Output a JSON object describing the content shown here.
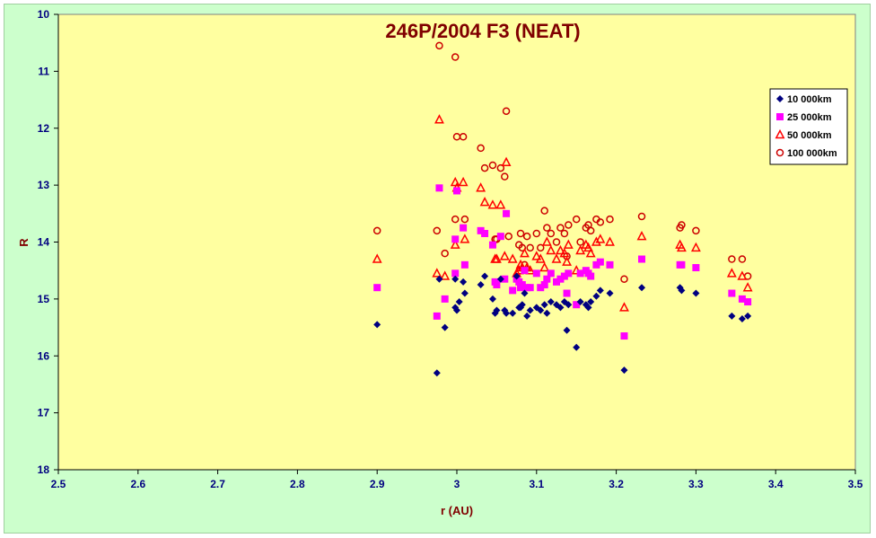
{
  "chart_data": {
    "type": "scatter",
    "title": "246P/2004  F3 (NEAT)",
    "xlabel": "r (AU)",
    "ylabel": "R",
    "xlim": [
      2.5,
      3.5
    ],
    "ylim": [
      10,
      18
    ],
    "y_inverted": true,
    "xticks": [
      "2.5",
      "2.6",
      "2.7",
      "2.8",
      "2.9",
      "3",
      "3.1",
      "3.2",
      "3.3",
      "3.4",
      "3.5"
    ],
    "yticks": [
      "10",
      "11",
      "12",
      "13",
      "14",
      "15",
      "16",
      "17",
      "18"
    ],
    "grid": false,
    "legend_position": "right",
    "colors": {
      "plot_bg": "#ffffa0",
      "outer_bg": "#ccffcc",
      "title": "#800000",
      "ticks": "#000080"
    },
    "series": [
      {
        "name": "10 000km",
        "marker": "diamond",
        "color": "#000080",
        "points": [
          [
            2.9,
            15.45
          ],
          [
            2.975,
            16.3
          ],
          [
            2.978,
            14.65
          ],
          [
            2.985,
            15.5
          ],
          [
            2.998,
            15.15
          ],
          [
            2.998,
            14.65
          ],
          [
            3.0,
            15.2
          ],
          [
            3.003,
            15.05
          ],
          [
            3.008,
            14.7
          ],
          [
            3.01,
            14.9
          ],
          [
            3.03,
            14.75
          ],
          [
            3.035,
            14.6
          ],
          [
            3.045,
            15.0
          ],
          [
            3.048,
            15.25
          ],
          [
            3.05,
            15.2
          ],
          [
            3.055,
            14.65
          ],
          [
            3.06,
            15.2
          ],
          [
            3.062,
            15.25
          ],
          [
            3.07,
            15.25
          ],
          [
            3.075,
            14.6
          ],
          [
            3.078,
            15.15
          ],
          [
            3.08,
            15.15
          ],
          [
            3.082,
            15.1
          ],
          [
            3.085,
            14.9
          ],
          [
            3.088,
            15.3
          ],
          [
            3.092,
            15.2
          ],
          [
            3.1,
            15.15
          ],
          [
            3.105,
            15.2
          ],
          [
            3.11,
            15.1
          ],
          [
            3.113,
            15.25
          ],
          [
            3.118,
            15.05
          ],
          [
            3.125,
            15.1
          ],
          [
            3.13,
            15.15
          ],
          [
            3.135,
            15.05
          ],
          [
            3.138,
            15.55
          ],
          [
            3.14,
            15.1
          ],
          [
            3.15,
            15.85
          ],
          [
            3.155,
            15.05
          ],
          [
            3.162,
            15.1
          ],
          [
            3.165,
            15.15
          ],
          [
            3.168,
            15.05
          ],
          [
            3.175,
            14.95
          ],
          [
            3.18,
            14.85
          ],
          [
            3.192,
            14.9
          ],
          [
            3.21,
            16.25
          ],
          [
            3.232,
            14.8
          ],
          [
            3.28,
            14.8
          ],
          [
            3.282,
            14.85
          ],
          [
            3.3,
            14.9
          ],
          [
            3.345,
            15.3
          ],
          [
            3.358,
            15.35
          ],
          [
            3.365,
            15.3
          ]
        ]
      },
      {
        "name": "25 000km",
        "marker": "square",
        "color": "#ff00ff",
        "points": [
          [
            2.9,
            14.8
          ],
          [
            2.975,
            15.3
          ],
          [
            2.978,
            13.05
          ],
          [
            2.985,
            15.0
          ],
          [
            2.998,
            14.55
          ],
          [
            2.998,
            13.95
          ],
          [
            3.0,
            13.1
          ],
          [
            3.008,
            13.75
          ],
          [
            3.01,
            14.4
          ],
          [
            3.03,
            13.8
          ],
          [
            3.035,
            13.85
          ],
          [
            3.045,
            14.05
          ],
          [
            3.048,
            14.7
          ],
          [
            3.05,
            14.75
          ],
          [
            3.055,
            13.9
          ],
          [
            3.06,
            14.65
          ],
          [
            3.062,
            13.5
          ],
          [
            3.07,
            14.85
          ],
          [
            3.075,
            14.65
          ],
          [
            3.078,
            14.7
          ],
          [
            3.08,
            14.8
          ],
          [
            3.082,
            14.75
          ],
          [
            3.085,
            14.5
          ],
          [
            3.088,
            14.8
          ],
          [
            3.092,
            14.8
          ],
          [
            3.1,
            14.55
          ],
          [
            3.105,
            14.8
          ],
          [
            3.11,
            14.75
          ],
          [
            3.113,
            14.65
          ],
          [
            3.118,
            14.55
          ],
          [
            3.125,
            14.7
          ],
          [
            3.13,
            14.65
          ],
          [
            3.135,
            14.6
          ],
          [
            3.138,
            14.9
          ],
          [
            3.14,
            14.55
          ],
          [
            3.15,
            15.1
          ],
          [
            3.155,
            14.55
          ],
          [
            3.162,
            14.5
          ],
          [
            3.165,
            14.55
          ],
          [
            3.168,
            14.6
          ],
          [
            3.175,
            14.4
          ],
          [
            3.18,
            14.35
          ],
          [
            3.192,
            14.4
          ],
          [
            3.21,
            15.65
          ],
          [
            3.232,
            14.3
          ],
          [
            3.28,
            14.4
          ],
          [
            3.282,
            14.4
          ],
          [
            3.3,
            14.45
          ],
          [
            3.345,
            14.9
          ],
          [
            3.358,
            15.0
          ],
          [
            3.365,
            15.05
          ]
        ]
      },
      {
        "name": "50 000km",
        "marker": "triangle",
        "color": "#ff0000",
        "points": [
          [
            2.9,
            14.3
          ],
          [
            2.975,
            14.55
          ],
          [
            2.978,
            11.85
          ],
          [
            2.985,
            14.6
          ],
          [
            2.998,
            14.05
          ],
          [
            2.998,
            12.95
          ],
          [
            3.0,
            13.05
          ],
          [
            3.008,
            12.95
          ],
          [
            3.01,
            13.95
          ],
          [
            3.03,
            13.05
          ],
          [
            3.035,
            13.3
          ],
          [
            3.045,
            13.35
          ],
          [
            3.048,
            14.3
          ],
          [
            3.05,
            14.3
          ],
          [
            3.055,
            13.35
          ],
          [
            3.06,
            14.25
          ],
          [
            3.062,
            12.6
          ],
          [
            3.07,
            14.3
          ],
          [
            3.075,
            14.55
          ],
          [
            3.078,
            14.5
          ],
          [
            3.08,
            14.4
          ],
          [
            3.082,
            14.45
          ],
          [
            3.085,
            14.2
          ],
          [
            3.088,
            14.45
          ],
          [
            3.092,
            14.5
          ],
          [
            3.1,
            14.25
          ],
          [
            3.105,
            14.3
          ],
          [
            3.11,
            14.45
          ],
          [
            3.113,
            14.0
          ],
          [
            3.118,
            14.15
          ],
          [
            3.125,
            14.3
          ],
          [
            3.13,
            14.15
          ],
          [
            3.135,
            14.2
          ],
          [
            3.138,
            14.35
          ],
          [
            3.14,
            14.05
          ],
          [
            3.15,
            14.5
          ],
          [
            3.155,
            14.15
          ],
          [
            3.162,
            14.05
          ],
          [
            3.165,
            14.1
          ],
          [
            3.168,
            14.2
          ],
          [
            3.175,
            14.0
          ],
          [
            3.18,
            13.95
          ],
          [
            3.192,
            14.0
          ],
          [
            3.21,
            15.15
          ],
          [
            3.232,
            13.9
          ],
          [
            3.28,
            14.05
          ],
          [
            3.282,
            14.1
          ],
          [
            3.3,
            14.1
          ],
          [
            3.345,
            14.55
          ],
          [
            3.358,
            14.6
          ],
          [
            3.365,
            14.8
          ]
        ]
      },
      {
        "name": "100 000km",
        "marker": "circle",
        "color": "#cc0000",
        "points": [
          [
            2.9,
            13.8
          ],
          [
            2.975,
            13.8
          ],
          [
            2.978,
            10.55
          ],
          [
            2.985,
            14.2
          ],
          [
            2.998,
            13.6
          ],
          [
            2.998,
            10.75
          ],
          [
            3.0,
            12.15
          ],
          [
            3.008,
            12.15
          ],
          [
            3.01,
            13.6
          ],
          [
            3.03,
            12.35
          ],
          [
            3.035,
            12.7
          ],
          [
            3.045,
            12.65
          ],
          [
            3.048,
            13.95
          ],
          [
            3.05,
            13.95
          ],
          [
            3.055,
            12.7
          ],
          [
            3.06,
            12.85
          ],
          [
            3.062,
            11.7
          ],
          [
            3.065,
            13.9
          ],
          [
            3.078,
            14.05
          ],
          [
            3.08,
            13.85
          ],
          [
            3.082,
            14.1
          ],
          [
            3.085,
            14.4
          ],
          [
            3.088,
            13.9
          ],
          [
            3.092,
            14.1
          ],
          [
            3.1,
            13.85
          ],
          [
            3.105,
            14.1
          ],
          [
            3.11,
            13.45
          ],
          [
            3.113,
            13.75
          ],
          [
            3.118,
            13.85
          ],
          [
            3.125,
            14.0
          ],
          [
            3.13,
            13.75
          ],
          [
            3.135,
            13.85
          ],
          [
            3.138,
            14.25
          ],
          [
            3.14,
            13.7
          ],
          [
            3.15,
            13.6
          ],
          [
            3.155,
            14.0
          ],
          [
            3.162,
            13.75
          ],
          [
            3.165,
            13.7
          ],
          [
            3.168,
            13.8
          ],
          [
            3.175,
            13.6
          ],
          [
            3.18,
            13.65
          ],
          [
            3.192,
            13.6
          ],
          [
            3.21,
            14.65
          ],
          [
            3.232,
            13.55
          ],
          [
            3.28,
            13.75
          ],
          [
            3.282,
            13.7
          ],
          [
            3.3,
            13.8
          ],
          [
            3.345,
            14.3
          ],
          [
            3.358,
            14.3
          ],
          [
            3.365,
            14.6
          ]
        ]
      }
    ]
  }
}
